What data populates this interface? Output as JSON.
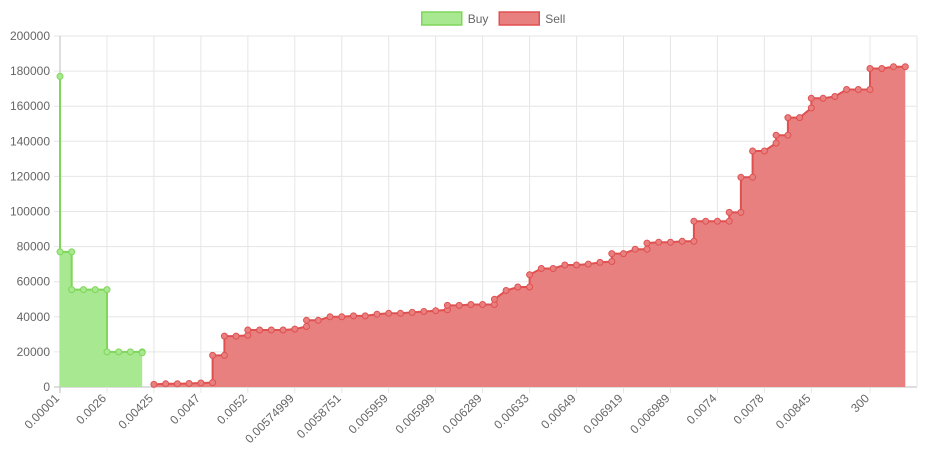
{
  "chart_data": {
    "type": "area",
    "legend": {
      "position": "top-center"
    },
    "grid": true,
    "ylim": [
      0,
      200000
    ],
    "y_ticks": [
      0,
      20000,
      40000,
      60000,
      80000,
      100000,
      120000,
      140000,
      160000,
      180000,
      200000
    ],
    "x_range": [
      1,
      74
    ],
    "x_tick_labels": [
      {
        "x": 1,
        "label": "0.00001"
      },
      {
        "x": 5,
        "label": "0.0026"
      },
      {
        "x": 9,
        "label": "0.00425"
      },
      {
        "x": 13,
        "label": "0.0047"
      },
      {
        "x": 17,
        "label": "0.0052"
      },
      {
        "x": 21,
        "label": "0.00574999"
      },
      {
        "x": 25,
        "label": "0.0058751"
      },
      {
        "x": 29,
        "label": "0.005959"
      },
      {
        "x": 33,
        "label": "0.005999"
      },
      {
        "x": 37,
        "label": "0.006289"
      },
      {
        "x": 41,
        "label": "0.00633"
      },
      {
        "x": 45,
        "label": "0.00649"
      },
      {
        "x": 49,
        "label": "0.006919"
      },
      {
        "x": 53,
        "label": "0.006989"
      },
      {
        "x": 57,
        "label": "0.0074"
      },
      {
        "x": 61,
        "label": "0.0078"
      },
      {
        "x": 65,
        "label": "0.00845"
      },
      {
        "x": 70,
        "label": "300"
      }
    ],
    "series": [
      {
        "name": "Buy",
        "color": "#a8e890",
        "line_color": "#7fd65a",
        "points": [
          [
            1,
            177000
          ],
          [
            1,
            77000
          ],
          [
            2,
            77000
          ],
          [
            2,
            55500
          ],
          [
            3,
            55500
          ],
          [
            4,
            55500
          ],
          [
            5,
            55500
          ],
          [
            5,
            20000
          ],
          [
            6,
            20000
          ],
          [
            7,
            20000
          ],
          [
            8,
            20000
          ],
          [
            8,
            19500
          ]
        ]
      },
      {
        "name": "Sell",
        "color": "#e88080",
        "line_color": "#e05050",
        "points": [
          [
            9,
            1500
          ],
          [
            10,
            1800
          ],
          [
            11,
            1800
          ],
          [
            12,
            2000
          ],
          [
            13,
            2300
          ],
          [
            14,
            2500
          ],
          [
            14,
            18000
          ],
          [
            15,
            18000
          ],
          [
            15,
            29000
          ],
          [
            16,
            29000
          ],
          [
            17,
            29500
          ],
          [
            17,
            32500
          ],
          [
            18,
            32500
          ],
          [
            19,
            32500
          ],
          [
            20,
            32500
          ],
          [
            21,
            33000
          ],
          [
            22,
            34500
          ],
          [
            22,
            38000
          ],
          [
            23,
            38000
          ],
          [
            24,
            40000
          ],
          [
            25,
            40000
          ],
          [
            26,
            40500
          ],
          [
            27,
            40500
          ],
          [
            28,
            41500
          ],
          [
            29,
            42000
          ],
          [
            30,
            42000
          ],
          [
            31,
            42500
          ],
          [
            32,
            43000
          ],
          [
            33,
            43500
          ],
          [
            34,
            44000
          ],
          [
            34,
            46500
          ],
          [
            35,
            46500
          ],
          [
            36,
            47000
          ],
          [
            37,
            47000
          ],
          [
            38,
            47000
          ],
          [
            38,
            50000
          ],
          [
            39,
            55000
          ],
          [
            40,
            57000
          ],
          [
            41,
            57000
          ],
          [
            41,
            64000
          ],
          [
            42,
            67500
          ],
          [
            43,
            67500
          ],
          [
            44,
            69500
          ],
          [
            45,
            69500
          ],
          [
            46,
            70000
          ],
          [
            47,
            71000
          ],
          [
            48,
            71500
          ],
          [
            48,
            76000
          ],
          [
            49,
            76000
          ],
          [
            50,
            78500
          ],
          [
            51,
            78500
          ],
          [
            51,
            82000
          ],
          [
            52,
            82500
          ],
          [
            53,
            82500
          ],
          [
            54,
            83000
          ],
          [
            55,
            83000
          ],
          [
            55,
            94500
          ],
          [
            56,
            94500
          ],
          [
            57,
            94500
          ],
          [
            58,
            94500
          ],
          [
            58,
            99500
          ],
          [
            59,
            99500
          ],
          [
            59,
            119500
          ],
          [
            60,
            119500
          ],
          [
            60,
            134500
          ],
          [
            61,
            134500
          ],
          [
            62,
            139000
          ],
          [
            62,
            143500
          ],
          [
            63,
            143500
          ],
          [
            63,
            153500
          ],
          [
            64,
            153500
          ],
          [
            65,
            159000
          ],
          [
            65,
            164500
          ],
          [
            66,
            164500
          ],
          [
            67,
            165500
          ],
          [
            68,
            169500
          ],
          [
            69,
            169500
          ],
          [
            70,
            169500
          ],
          [
            70,
            181500
          ],
          [
            71,
            181500
          ],
          [
            72,
            182500
          ],
          [
            73,
            182500
          ]
        ]
      }
    ]
  }
}
